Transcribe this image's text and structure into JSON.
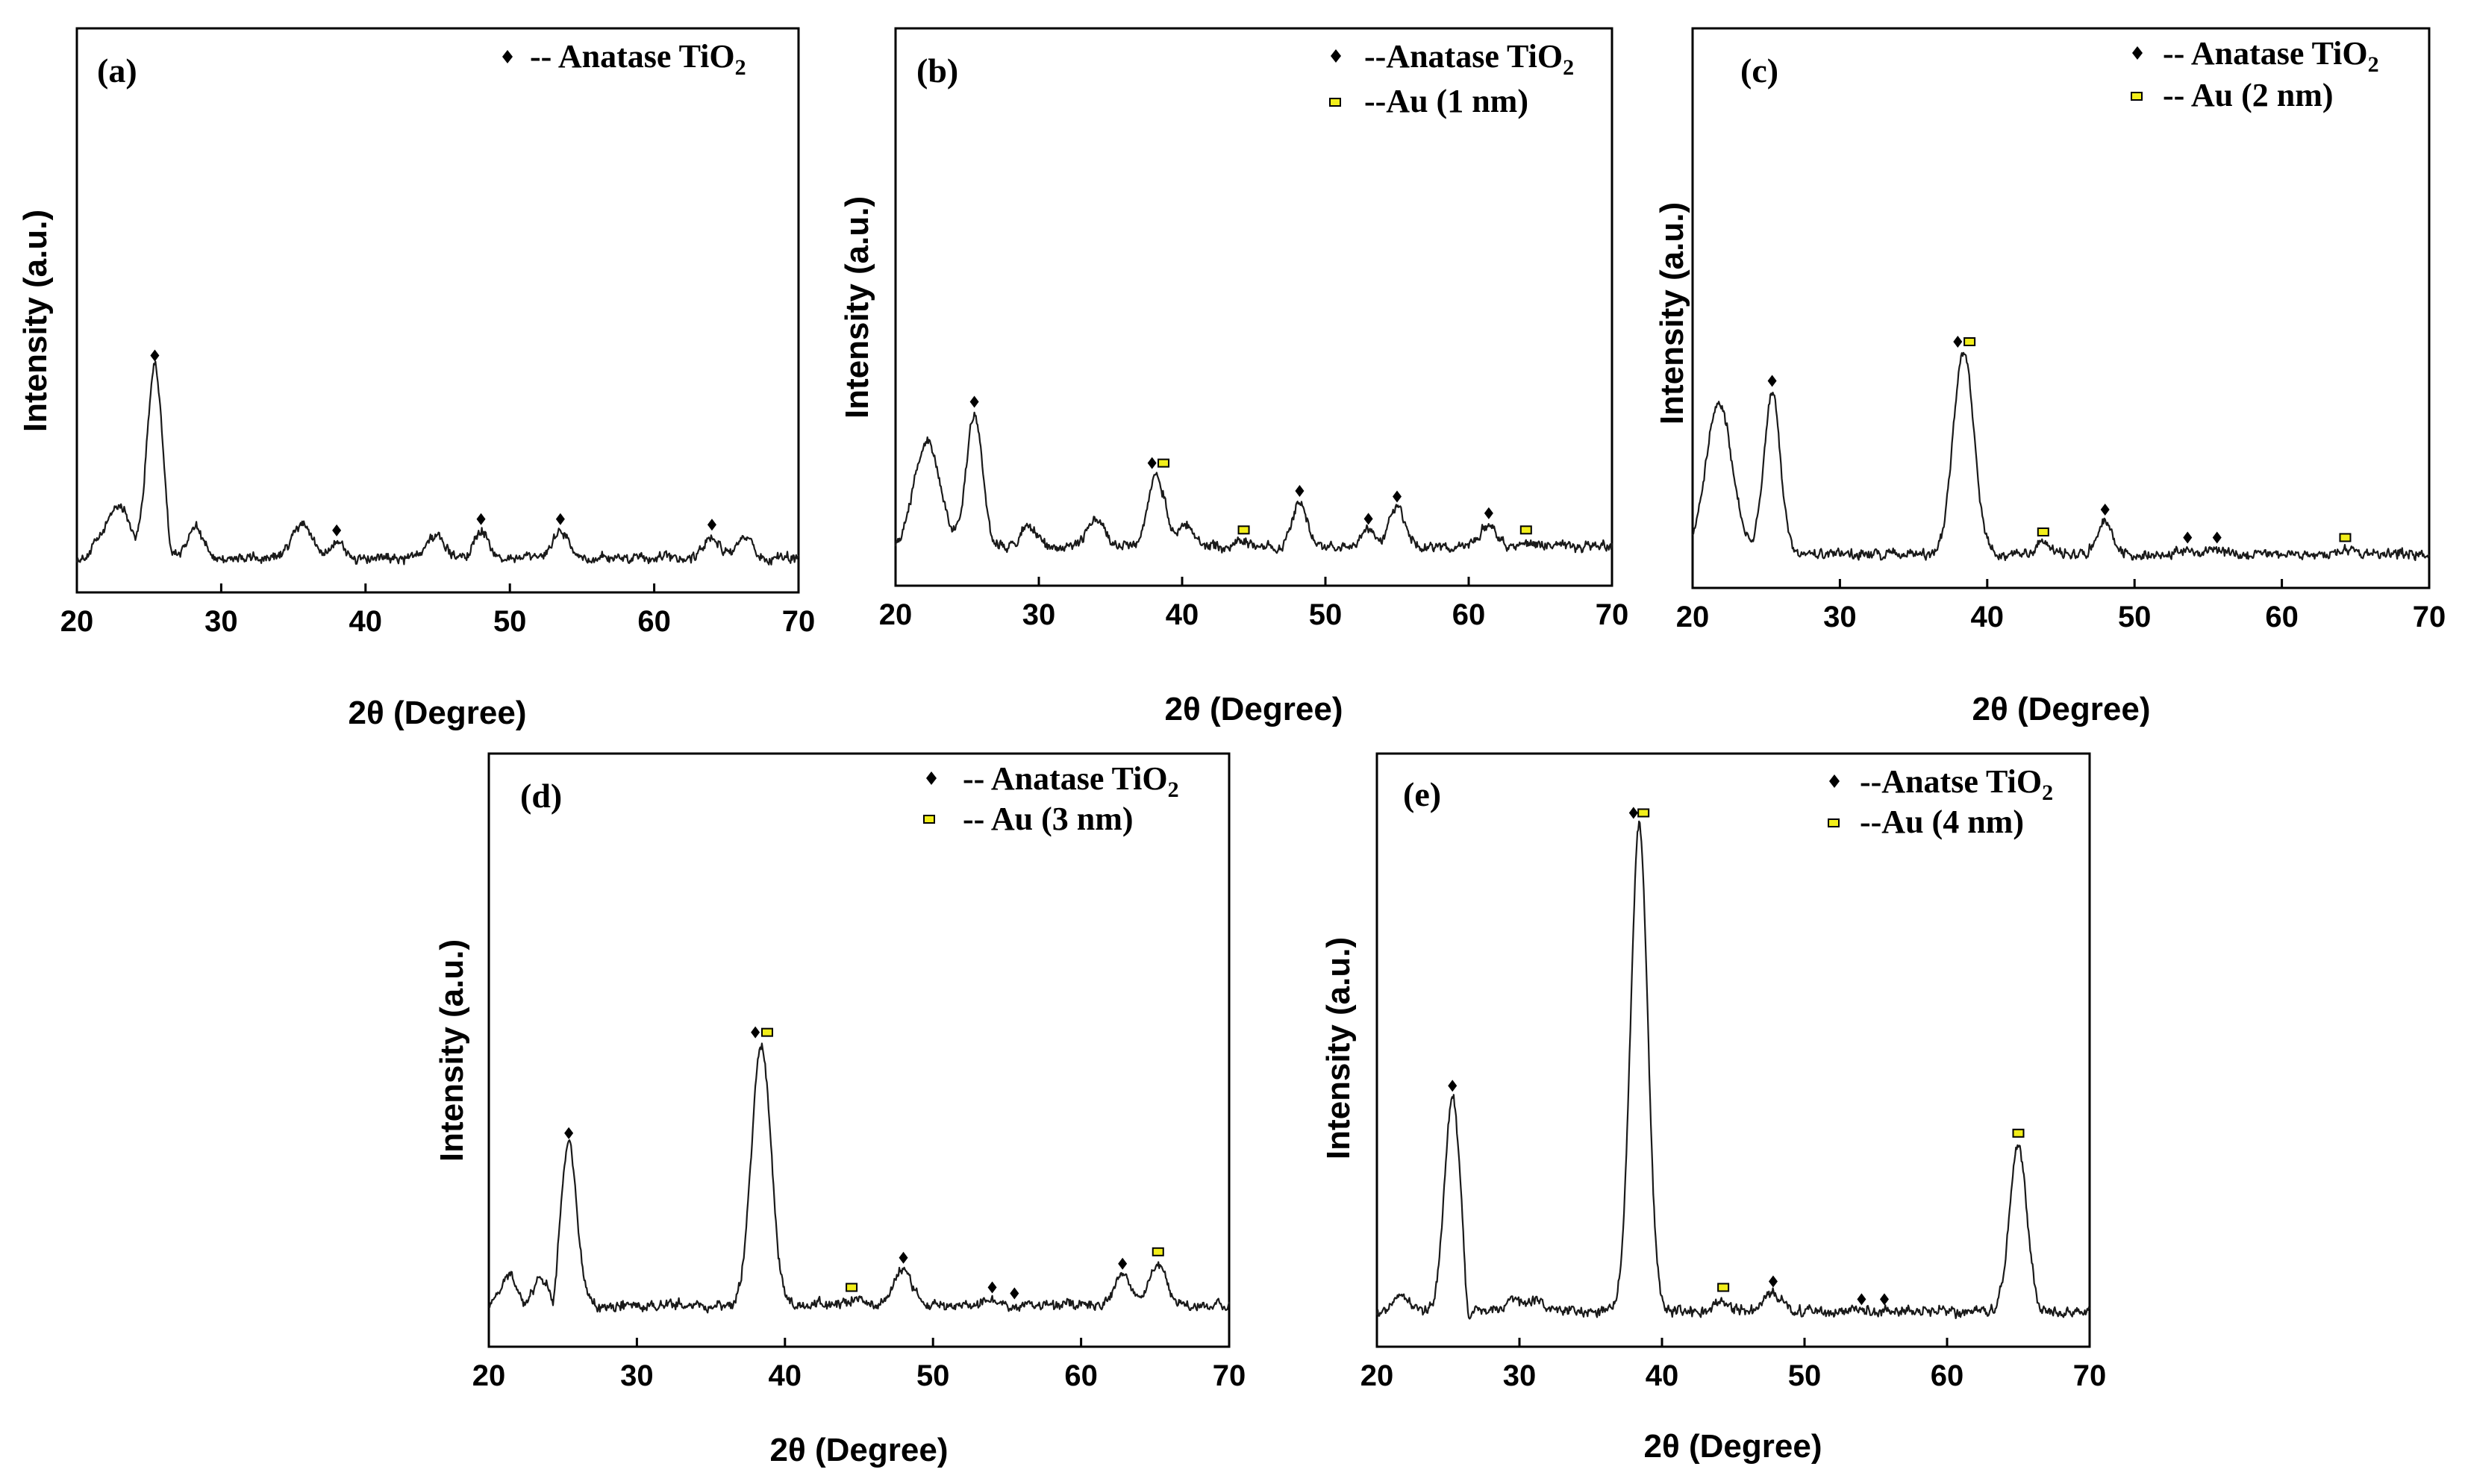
{
  "colors": {
    "line": "#1a1a1a",
    "anatase_marker": "#000000",
    "au_marker_fill": "#f2ee1a",
    "frame": "#000000",
    "background": "#ffffff"
  },
  "chart_data": [
    {
      "type": "line",
      "panel_label": "(a)",
      "xlabel": "2θ (Degree)",
      "ylabel": "Intensity (a.u.)",
      "xlim": [
        20,
        70
      ],
      "ylim": [
        0,
        100
      ],
      "xticks": [
        "20",
        "30",
        "40",
        "50",
        "60",
        "70"
      ],
      "legend": [
        {
          "marker": "anatase",
          "label": "-- Anatase TiO",
          "sub": "2"
        }
      ],
      "baseline": 6,
      "peaks": [
        {
          "x": 21.6,
          "y": 9,
          "w": 0.5
        },
        {
          "x": 22.6,
          "y": 13,
          "w": 0.5
        },
        {
          "x": 23.4,
          "y": 12,
          "w": 0.5
        },
        {
          "x": 25.4,
          "y": 40,
          "w": 0.55
        },
        {
          "x": 28.2,
          "y": 12,
          "w": 0.5
        },
        {
          "x": 35.6,
          "y": 12,
          "w": 0.7
        },
        {
          "x": 38.0,
          "y": 9,
          "w": 0.5
        },
        {
          "x": 44.8,
          "y": 10,
          "w": 0.7
        },
        {
          "x": 48.0,
          "y": 11,
          "w": 0.5
        },
        {
          "x": 53.5,
          "y": 11,
          "w": 0.55
        },
        {
          "x": 64.0,
          "y": 10,
          "w": 0.55
        },
        {
          "x": 66.2,
          "y": 10,
          "w": 0.5
        }
      ],
      "dips": [
        {
          "x": 26.5,
          "y": 3
        }
      ],
      "markers": [
        {
          "type": "anatase",
          "x": 25.4,
          "y": 42
        },
        {
          "type": "anatase",
          "x": 38.0,
          "y": 11
        },
        {
          "type": "anatase",
          "x": 48.0,
          "y": 13
        },
        {
          "type": "anatase",
          "x": 53.5,
          "y": 13
        },
        {
          "type": "anatase",
          "x": 64.0,
          "y": 12
        }
      ]
    },
    {
      "type": "line",
      "panel_label": "(b)",
      "xlabel": "2θ (Degree)",
      "ylabel": "Intensity (a.u.)",
      "xlim": [
        20,
        70
      ],
      "ylim": [
        0,
        100
      ],
      "xticks": [
        "20",
        "30",
        "40",
        "50",
        "60",
        "70"
      ],
      "legend": [
        {
          "marker": "anatase",
          "label": "--Anatase TiO",
          "sub": "2"
        },
        {
          "marker": "au",
          "label": "--Au (1 nm)",
          "sub": ""
        }
      ],
      "baseline": 7,
      "peaks": [
        {
          "x": 22.2,
          "y": 26,
          "w": 0.9
        },
        {
          "x": 25.5,
          "y": 31,
          "w": 0.55
        },
        {
          "x": 29.3,
          "y": 11,
          "w": 0.5
        },
        {
          "x": 34.0,
          "y": 12,
          "w": 0.6
        },
        {
          "x": 38.2,
          "y": 20,
          "w": 0.6
        },
        {
          "x": 40.3,
          "y": 11,
          "w": 0.5
        },
        {
          "x": 44.3,
          "y": 8,
          "w": 0.5
        },
        {
          "x": 48.2,
          "y": 15,
          "w": 0.5
        },
        {
          "x": 53.0,
          "y": 10,
          "w": 0.5
        },
        {
          "x": 55.0,
          "y": 14,
          "w": 0.55
        },
        {
          "x": 61.4,
          "y": 11,
          "w": 0.55
        },
        {
          "x": 64.0,
          "y": 8,
          "w": 0.5
        }
      ],
      "dips": [],
      "markers": [
        {
          "type": "anatase",
          "x": 25.5,
          "y": 33
        },
        {
          "type": "anatase",
          "x": 37.9,
          "y": 22
        },
        {
          "type": "au",
          "x": 38.7,
          "y": 22
        },
        {
          "type": "au",
          "x": 44.3,
          "y": 10
        },
        {
          "type": "anatase",
          "x": 48.2,
          "y": 17
        },
        {
          "type": "anatase",
          "x": 53.0,
          "y": 12
        },
        {
          "type": "anatase",
          "x": 55.0,
          "y": 16
        },
        {
          "type": "anatase",
          "x": 61.4,
          "y": 13
        },
        {
          "type": "au",
          "x": 64.0,
          "y": 10
        }
      ]
    },
    {
      "type": "line",
      "panel_label": "(c)",
      "xlabel": "2θ (Degree)",
      "ylabel": "Intensity (a.u.)",
      "xlim": [
        20,
        70
      ],
      "ylim": [
        0,
        100
      ],
      "xticks": [
        "20",
        "30",
        "40",
        "50",
        "60",
        "70"
      ],
      "legend": [
        {
          "marker": "anatase",
          "label": "-- Anatase TiO",
          "sub": "2"
        },
        {
          "marker": "au",
          "label": "-- Au (2 nm)",
          "sub": ""
        }
      ],
      "baseline": 6,
      "peaks": [
        {
          "x": 21.8,
          "y": 33,
          "w": 0.9
        },
        {
          "x": 25.4,
          "y": 35,
          "w": 0.55
        },
        {
          "x": 38.4,
          "y": 42,
          "w": 0.7
        },
        {
          "x": 43.8,
          "y": 8,
          "w": 0.5
        },
        {
          "x": 48.0,
          "y": 12,
          "w": 0.55
        },
        {
          "x": 53.6,
          "y": 7,
          "w": 0.5
        },
        {
          "x": 55.6,
          "y": 7,
          "w": 0.5
        },
        {
          "x": 64.3,
          "y": 7,
          "w": 0.5
        }
      ],
      "dips": [],
      "markers": [
        {
          "type": "anatase",
          "x": 25.4,
          "y": 37
        },
        {
          "type": "anatase",
          "x": 38.0,
          "y": 44
        },
        {
          "type": "au",
          "x": 38.8,
          "y": 44
        },
        {
          "type": "au",
          "x": 43.8,
          "y": 10
        },
        {
          "type": "anatase",
          "x": 48.0,
          "y": 14
        },
        {
          "type": "anatase",
          "x": 53.6,
          "y": 9
        },
        {
          "type": "anatase",
          "x": 55.6,
          "y": 9
        },
        {
          "type": "au",
          "x": 64.3,
          "y": 9
        }
      ]
    },
    {
      "type": "line",
      "panel_label": "(d)",
      "xlabel": "2θ (Degree)",
      "ylabel": "Intensity (a.u.)",
      "xlim": [
        20,
        70
      ],
      "ylim": [
        0,
        100
      ],
      "xticks": [
        "20",
        "30",
        "40",
        "50",
        "60",
        "70"
      ],
      "legend": [
        {
          "marker": "anatase",
          "label": "-- Anatase TiO",
          "sub": "2"
        },
        {
          "marker": "au",
          "label": "-- Au (3 nm)",
          "sub": ""
        }
      ],
      "baseline": 7,
      "peaks": [
        {
          "x": 21.3,
          "y": 12,
          "w": 0.5
        },
        {
          "x": 23.5,
          "y": 11,
          "w": 0.5
        },
        {
          "x": 25.4,
          "y": 34,
          "w": 0.55
        },
        {
          "x": 38.4,
          "y": 51,
          "w": 0.65
        },
        {
          "x": 44.5,
          "y": 8,
          "w": 0.5
        },
        {
          "x": 48.0,
          "y": 13,
          "w": 0.6
        },
        {
          "x": 54.0,
          "y": 8,
          "w": 0.5
        },
        {
          "x": 55.5,
          "y": 7,
          "w": 0.5
        },
        {
          "x": 62.8,
          "y": 12,
          "w": 0.55
        },
        {
          "x": 65.2,
          "y": 14,
          "w": 0.6
        }
      ],
      "dips": [
        {
          "x": 24.4,
          "y": 2
        }
      ],
      "markers": [
        {
          "type": "anatase",
          "x": 25.4,
          "y": 36
        },
        {
          "type": "anatase",
          "x": 38.0,
          "y": 53
        },
        {
          "type": "au",
          "x": 38.8,
          "y": 53
        },
        {
          "type": "au",
          "x": 44.5,
          "y": 10
        },
        {
          "type": "anatase",
          "x": 48.0,
          "y": 15
        },
        {
          "type": "anatase",
          "x": 54.0,
          "y": 10
        },
        {
          "type": "anatase",
          "x": 55.5,
          "y": 9
        },
        {
          "type": "anatase",
          "x": 62.8,
          "y": 14
        },
        {
          "type": "au",
          "x": 65.2,
          "y": 16
        }
      ]
    },
    {
      "type": "line",
      "panel_label": "(e)",
      "xlabel": "2θ (Degree)",
      "ylabel": "Intensity (a.u.)",
      "xlim": [
        20,
        70
      ],
      "ylim": [
        0,
        100
      ],
      "xticks": [
        "20",
        "30",
        "40",
        "50",
        "60",
        "70"
      ],
      "legend": [
        {
          "marker": "anatase",
          "label": "--Anatse TiO",
          "sub": "2"
        },
        {
          "marker": "au",
          "label": "--Au (4 nm)",
          "sub": ""
        }
      ],
      "baseline": 6,
      "peaks": [
        {
          "x": 21.8,
          "y": 9,
          "w": 0.5
        },
        {
          "x": 25.3,
          "y": 42,
          "w": 0.55
        },
        {
          "x": 29.5,
          "y": 8,
          "w": 0.5
        },
        {
          "x": 31.0,
          "y": 8,
          "w": 0.5
        },
        {
          "x": 38.4,
          "y": 88,
          "w": 0.6
        },
        {
          "x": 44.3,
          "y": 8,
          "w": 0.5
        },
        {
          "x": 47.8,
          "y": 9,
          "w": 0.55
        },
        {
          "x": 54.0,
          "y": 6,
          "w": 0.5
        },
        {
          "x": 55.6,
          "y": 6,
          "w": 0.5
        },
        {
          "x": 65.0,
          "y": 34,
          "w": 0.6
        }
      ],
      "dips": [
        {
          "x": 26.4,
          "y": 0.5
        }
      ],
      "markers": [
        {
          "type": "anatase",
          "x": 25.3,
          "y": 44
        },
        {
          "type": "anatase",
          "x": 38.0,
          "y": 90
        },
        {
          "type": "au",
          "x": 38.7,
          "y": 90
        },
        {
          "type": "au",
          "x": 44.3,
          "y": 10
        },
        {
          "type": "anatase",
          "x": 47.8,
          "y": 11
        },
        {
          "type": "anatase",
          "x": 54.0,
          "y": 8
        },
        {
          "type": "anatase",
          "x": 55.6,
          "y": 8
        },
        {
          "type": "au",
          "x": 65.0,
          "y": 36
        }
      ]
    }
  ]
}
